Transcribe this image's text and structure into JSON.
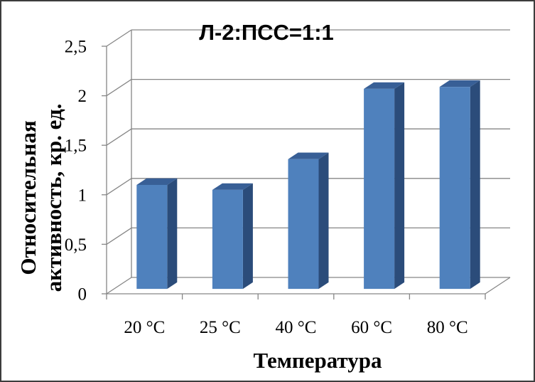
{
  "chart_data": {
    "type": "bar",
    "bar_style": "3d",
    "title": "Л-2:ПСС=1:1",
    "xlabel": "Температура",
    "ylabel": "Относительная активность, кр. ед.",
    "categories": [
      "20 °C",
      "25 °C",
      "40 °C",
      "60 °C",
      "80 °C"
    ],
    "values": [
      1.05,
      1.0,
      1.31,
      2.02,
      2.04
    ],
    "ylim": [
      0,
      2.5
    ],
    "yticks": [
      {
        "value": 0,
        "label": "0"
      },
      {
        "value": 0.5,
        "label": "0,5"
      },
      {
        "value": 1,
        "label": "1"
      },
      {
        "value": 1.5,
        "label": "1,5"
      },
      {
        "value": 2,
        "label": "2"
      },
      {
        "value": 2.5,
        "label": "2,5"
      }
    ],
    "grid": true,
    "legend": "none"
  },
  "colors": {
    "bar_front": "#4f81bd",
    "bar_side": "#2b4c7a",
    "bar_top": "#385f96",
    "grid": "#868686",
    "text": "#000000"
  }
}
